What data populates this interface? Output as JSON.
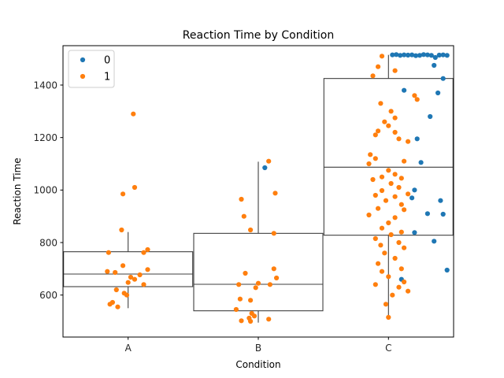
{
  "chart_data": {
    "type": "scatter",
    "subtype": "box-strip",
    "title": "Reaction Time by Condition",
    "xlabel": "Condition",
    "ylabel": "Reaction Time",
    "categories": [
      "A",
      "B",
      "C"
    ],
    "ylim": [
      440,
      1550
    ],
    "yticks": [
      600,
      800,
      1000,
      1200,
      1400
    ],
    "grid": false,
    "legend": {
      "position": "top-left",
      "entries": [
        "0",
        "1"
      ]
    },
    "colors": {
      "0": "#1f77b4",
      "1": "#ff7f0e",
      "box_edge": "#3f3f3f"
    },
    "boxes": [
      {
        "category": "A",
        "whisker_low": 550,
        "q1": 632,
        "median": 680,
        "q3": 765,
        "whisker_high": 840
      },
      {
        "category": "B",
        "whisker_low": 495,
        "q1": 540,
        "median": 641,
        "q3": 835,
        "whisker_high": 1108
      },
      {
        "category": "C",
        "whisker_low": 515,
        "q1": 828,
        "median": 1087,
        "q3": 1425,
        "whisker_high": 1515
      }
    ],
    "series": [
      {
        "name": "0",
        "points": [
          [
            "B",
            0.05,
            1085
          ],
          [
            "C",
            0.03,
            1515
          ],
          [
            "C",
            0.06,
            1516
          ],
          [
            "C",
            0.09,
            1513
          ],
          [
            "C",
            0.12,
            1515
          ],
          [
            "C",
            0.15,
            1514
          ],
          [
            "C",
            0.18,
            1515
          ],
          [
            "C",
            0.21,
            1512
          ],
          [
            "C",
            0.24,
            1513
          ],
          [
            "C",
            0.27,
            1516
          ],
          [
            "C",
            0.3,
            1515
          ],
          [
            "C",
            0.33,
            1513
          ],
          [
            "C",
            0.36,
            1505
          ],
          [
            "C",
            0.39,
            1514
          ],
          [
            "C",
            0.42,
            1515
          ],
          [
            "C",
            0.45,
            1513
          ],
          [
            "C",
            0.12,
            1380
          ],
          [
            "C",
            0.35,
            1475
          ],
          [
            "C",
            0.42,
            1425
          ],
          [
            "C",
            0.38,
            1370
          ],
          [
            "C",
            0.32,
            1280
          ],
          [
            "C",
            0.22,
            1195
          ],
          [
            "C",
            0.25,
            1105
          ],
          [
            "C",
            0.2,
            1000
          ],
          [
            "C",
            0.18,
            970
          ],
          [
            "C",
            0.4,
            960
          ],
          [
            "C",
            0.3,
            910
          ],
          [
            "C",
            0.42,
            908
          ],
          [
            "C",
            0.2,
            838
          ],
          [
            "C",
            0.35,
            805
          ],
          [
            "C",
            0.1,
            660
          ],
          [
            "C",
            0.45,
            695
          ]
        ]
      },
      {
        "name": "1",
        "points": [
          [
            "A",
            0.04,
            1290
          ],
          [
            "A",
            -0.04,
            985
          ],
          [
            "A",
            0.05,
            1010
          ],
          [
            "A",
            -0.05,
            848
          ],
          [
            "A",
            0.15,
            773
          ],
          [
            "A",
            0.12,
            762
          ],
          [
            "A",
            -0.15,
            762
          ],
          [
            "A",
            -0.04,
            712
          ],
          [
            "A",
            0.15,
            697
          ],
          [
            "A",
            -0.16,
            690
          ],
          [
            "A",
            -0.1,
            686
          ],
          [
            "A",
            0.09,
            677
          ],
          [
            "A",
            0.02,
            668
          ],
          [
            "A",
            0.05,
            660
          ],
          [
            "A",
            0.0,
            648
          ],
          [
            "A",
            0.12,
            640
          ],
          [
            "A",
            -0.09,
            620
          ],
          [
            "A",
            -0.03,
            607
          ],
          [
            "A",
            -0.01,
            600
          ],
          [
            "A",
            -0.12,
            572
          ],
          [
            "A",
            -0.14,
            565
          ],
          [
            "A",
            -0.08,
            555
          ],
          [
            "B",
            0.08,
            1110
          ],
          [
            "B",
            0.13,
            988
          ],
          [
            "B",
            -0.13,
            965
          ],
          [
            "B",
            -0.11,
            900
          ],
          [
            "B",
            -0.06,
            848
          ],
          [
            "B",
            0.12,
            835
          ],
          [
            "B",
            0.12,
            700
          ],
          [
            "B",
            -0.1,
            683
          ],
          [
            "B",
            0.14,
            665
          ],
          [
            "B",
            0.0,
            645
          ],
          [
            "B",
            0.09,
            640
          ],
          [
            "B",
            -0.15,
            640
          ],
          [
            "B",
            -0.02,
            628
          ],
          [
            "B",
            -0.14,
            585
          ],
          [
            "B",
            -0.06,
            580
          ],
          [
            "B",
            -0.17,
            545
          ],
          [
            "B",
            -0.05,
            530
          ],
          [
            "B",
            -0.03,
            520
          ],
          [
            "B",
            -0.07,
            512
          ],
          [
            "B",
            0.08,
            508
          ],
          [
            "B",
            -0.13,
            502
          ],
          [
            "B",
            -0.06,
            500
          ],
          [
            "C",
            -0.05,
            1510
          ],
          [
            "C",
            -0.08,
            1470
          ],
          [
            "C",
            -0.12,
            1435
          ],
          [
            "C",
            0.05,
            1455
          ],
          [
            "C",
            0.2,
            1360
          ],
          [
            "C",
            0.22,
            1345
          ],
          [
            "C",
            -0.06,
            1330
          ],
          [
            "C",
            0.02,
            1300
          ],
          [
            "C",
            0.05,
            1275
          ],
          [
            "C",
            -0.03,
            1260
          ],
          [
            "C",
            -0.08,
            1225
          ],
          [
            "C",
            0.0,
            1245
          ],
          [
            "C",
            0.05,
            1220
          ],
          [
            "C",
            -0.1,
            1210
          ],
          [
            "C",
            0.08,
            1195
          ],
          [
            "C",
            0.15,
            1185
          ],
          [
            "C",
            -0.14,
            1135
          ],
          [
            "C",
            -0.1,
            1120
          ],
          [
            "C",
            0.12,
            1110
          ],
          [
            "C",
            -0.15,
            1100
          ],
          [
            "C",
            0.0,
            1075
          ],
          [
            "C",
            0.05,
            1060
          ],
          [
            "C",
            -0.05,
            1050
          ],
          [
            "C",
            0.1,
            1045
          ],
          [
            "C",
            -0.12,
            1040
          ],
          [
            "C",
            0.02,
            1025
          ],
          [
            "C",
            0.08,
            1010
          ],
          [
            "C",
            -0.05,
            998
          ],
          [
            "C",
            0.15,
            985
          ],
          [
            "C",
            -0.1,
            980
          ],
          [
            "C",
            0.05,
            975
          ],
          [
            "C",
            -0.02,
            960
          ],
          [
            "C",
            0.1,
            945
          ],
          [
            "C",
            -0.08,
            930
          ],
          [
            "C",
            0.12,
            925
          ],
          [
            "C",
            -0.15,
            905
          ],
          [
            "C",
            0.05,
            895
          ],
          [
            "C",
            0.0,
            875
          ],
          [
            "C",
            -0.05,
            855
          ],
          [
            "C",
            0.1,
            840
          ],
          [
            "C",
            0.02,
            830
          ],
          [
            "C",
            -0.1,
            815
          ],
          [
            "C",
            0.08,
            800
          ],
          [
            "C",
            -0.06,
            790
          ],
          [
            "C",
            0.12,
            780
          ],
          [
            "C",
            -0.03,
            760
          ],
          [
            "C",
            0.05,
            740
          ],
          [
            "C",
            -0.08,
            720
          ],
          [
            "C",
            0.1,
            700
          ],
          [
            "C",
            -0.05,
            690
          ],
          [
            "C",
            0.0,
            670
          ],
          [
            "C",
            0.12,
            650
          ],
          [
            "C",
            -0.1,
            640
          ],
          [
            "C",
            0.08,
            630
          ],
          [
            "C",
            0.15,
            615
          ],
          [
            "C",
            0.03,
            600
          ],
          [
            "C",
            -0.02,
            565
          ],
          [
            "C",
            0.0,
            515
          ]
        ]
      }
    ]
  }
}
